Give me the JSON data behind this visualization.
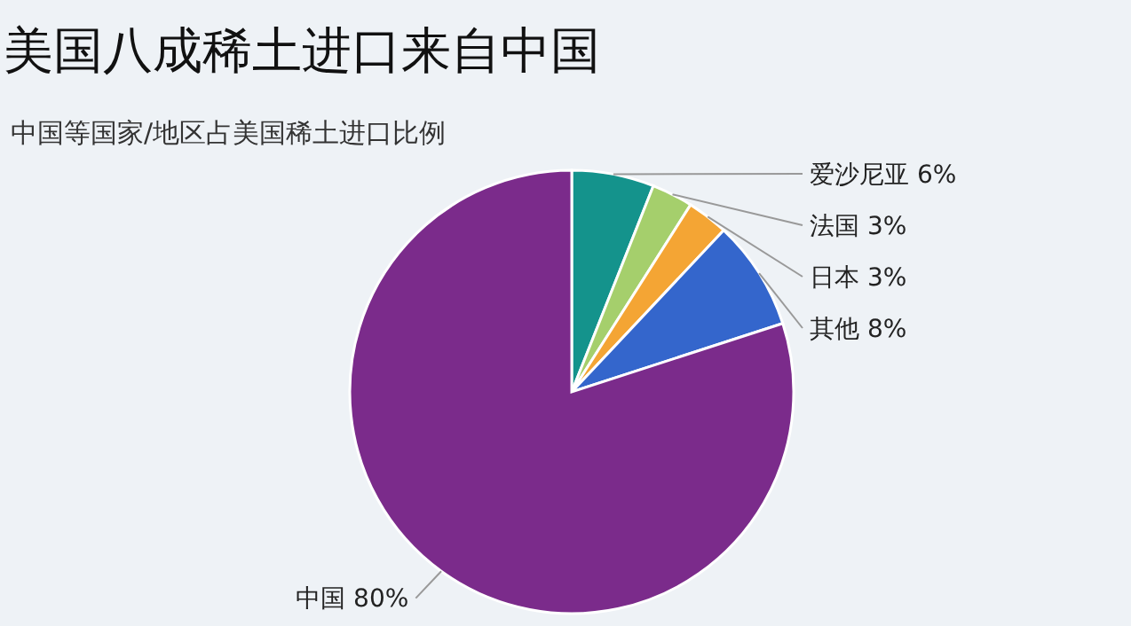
{
  "chart_data": {
    "type": "pie",
    "title": "美国八成稀土进口来自中国",
    "subtitle": "中国等国家/地区占美国稀土进口比例",
    "categories": [
      "爱沙尼亚",
      "法国",
      "日本",
      "其他",
      "中国"
    ],
    "values": [
      6,
      3,
      3,
      8,
      80
    ],
    "value_labels": [
      "6%",
      "3%",
      "3%",
      "8%",
      "80%"
    ],
    "colors": [
      "#14938c",
      "#a5cf6c",
      "#f4a534",
      "#3466cc",
      "#7b2b8b"
    ]
  }
}
